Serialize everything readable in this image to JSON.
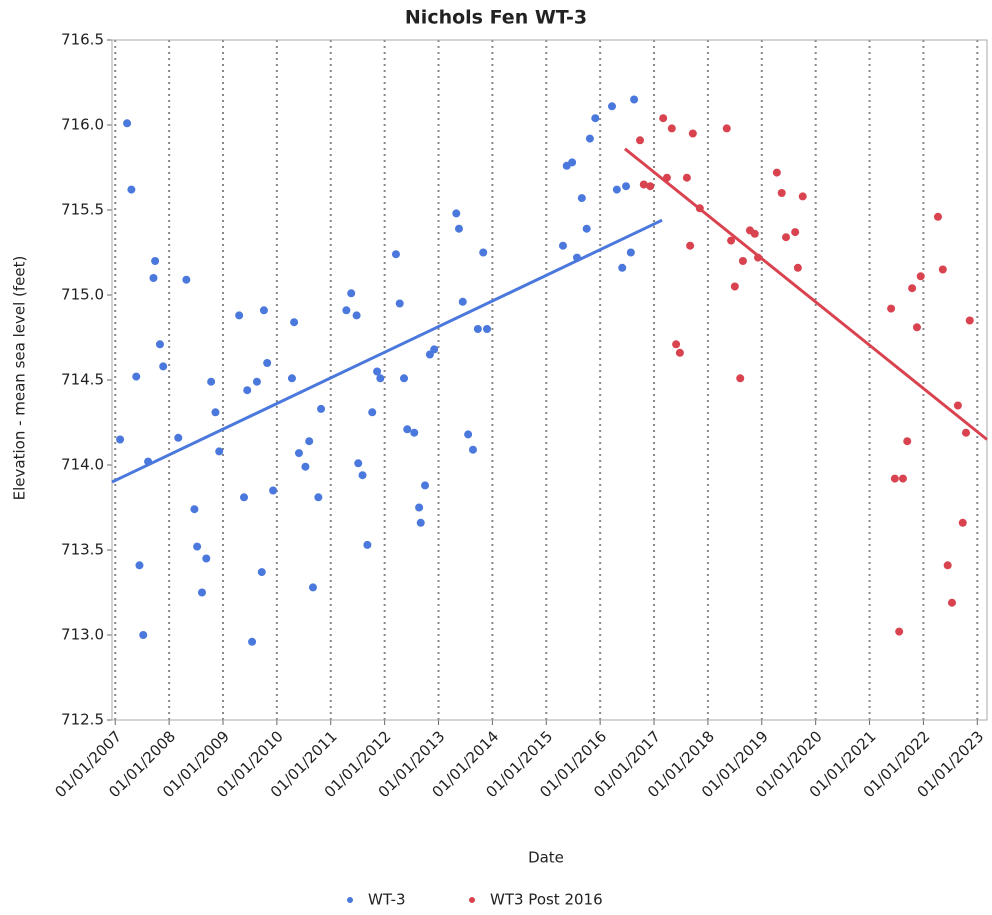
{
  "chart_data": {
    "type": "scatter",
    "title": "Nichols Fen WT-3",
    "x_label": "Date",
    "y_label": "Elevation - mean sea level (feet)",
    "xlim": [
      2006.94,
      2023.18
    ],
    "ylim": [
      712.5,
      716.5
    ],
    "xticks": [
      {
        "value": 2007,
        "label": "01/01/2007"
      },
      {
        "value": 2008,
        "label": "01/01/2008"
      },
      {
        "value": 2009,
        "label": "01/01/2009"
      },
      {
        "value": 2010,
        "label": "01/01/2010"
      },
      {
        "value": 2011,
        "label": "01/01/2011"
      },
      {
        "value": 2012,
        "label": "01/01/2012"
      },
      {
        "value": 2013,
        "label": "01/01/2013"
      },
      {
        "value": 2014,
        "label": "01/01/2014"
      },
      {
        "value": 2015,
        "label": "01/01/2015"
      },
      {
        "value": 2016,
        "label": "01/01/2016"
      },
      {
        "value": 2017,
        "label": "01/01/2017"
      },
      {
        "value": 2018,
        "label": "01/01/2018"
      },
      {
        "value": 2019,
        "label": "01/01/2019"
      },
      {
        "value": 2020,
        "label": "01/01/2020"
      },
      {
        "value": 2021,
        "label": "01/01/2021"
      },
      {
        "value": 2022,
        "label": "01/01/2022"
      },
      {
        "value": 2023,
        "label": "01/01/2023"
      }
    ],
    "yticks": [
      {
        "value": 712.5,
        "label": "712.5"
      },
      {
        "value": 713,
        "label": "713.0"
      },
      {
        "value": 713.5,
        "label": "713.5"
      },
      {
        "value": 714,
        "label": "714.0"
      },
      {
        "value": 714.5,
        "label": "714.5"
      },
      {
        "value": 715,
        "label": "715.0"
      },
      {
        "value": 715.5,
        "label": "715.5"
      },
      {
        "value": 716,
        "label": "716.0"
      },
      {
        "value": 716.5,
        "label": "716.5"
      }
    ],
    "x_grid": true,
    "series": [
      {
        "name": "WT-3",
        "color": "#4a78dc",
        "x": [
          2007.09,
          2007.22,
          2007.3,
          2007.39,
          2007.45,
          2007.52,
          2007.61,
          2007.71,
          2007.74,
          2007.83,
          2007.89,
          2008.17,
          2008.32,
          2008.47,
          2008.52,
          2008.61,
          2008.69,
          2008.78,
          2008.86,
          2008.93,
          2009.3,
          2009.39,
          2009.45,
          2009.54,
          2009.63,
          2009.72,
          2009.76,
          2009.82,
          2009.93,
          2010.28,
          2010.32,
          2010.41,
          2010.53,
          2010.6,
          2010.67,
          2010.77,
          2010.82,
          2011.29,
          2011.38,
          2011.48,
          2011.51,
          2011.59,
          2011.68,
          2011.77,
          2011.86,
          2011.92,
          2012.21,
          2012.28,
          2012.36,
          2012.42,
          2012.55,
          2012.64,
          2012.67,
          2012.75,
          2012.84,
          2012.92,
          2013.33,
          2013.38,
          2013.45,
          2013.55,
          2013.64,
          2013.73,
          2013.83,
          2013.9,
          2015.31,
          2015.38,
          2015.48,
          2015.57,
          2015.66,
          2015.75,
          2015.81,
          2015.91,
          2016.22,
          2016.31,
          2016.41,
          2016.48,
          2016.57,
          2016.63
        ],
        "values": [
          714.15,
          716.01,
          715.62,
          714.52,
          713.41,
          713.0,
          714.02,
          715.1,
          715.2,
          714.71,
          714.58,
          714.16,
          715.09,
          713.74,
          713.52,
          713.25,
          713.45,
          714.49,
          714.31,
          714.08,
          714.88,
          713.81,
          714.44,
          712.96,
          714.49,
          713.37,
          714.91,
          714.6,
          713.85,
          714.51,
          714.84,
          714.07,
          713.99,
          714.14,
          713.28,
          713.81,
          714.33,
          714.91,
          715.01,
          714.88,
          714.01,
          713.94,
          713.53,
          714.31,
          714.55,
          714.51,
          715.24,
          714.95,
          714.51,
          714.21,
          714.19,
          713.75,
          713.66,
          713.88,
          714.65,
          714.68,
          715.48,
          715.39,
          714.96,
          714.18,
          714.09,
          714.8,
          715.25,
          714.8,
          715.29,
          715.76,
          715.78,
          715.22,
          715.57,
          715.39,
          715.92,
          716.04,
          716.11,
          715.62,
          715.16,
          715.64,
          715.25,
          716.15
        ],
        "fit": {
          "x": [
            2006.94,
            2017.15
          ],
          "y": [
            713.9,
            715.44
          ]
        }
      },
      {
        "name": "WT3 Post 2016",
        "color": "#d9434f",
        "x": [
          2016.74,
          2016.81,
          2016.93,
          2017.17,
          2017.24,
          2017.33,
          2017.41,
          2017.48,
          2017.61,
          2017.67,
          2017.72,
          2017.85,
          2018.35,
          2018.43,
          2018.5,
          2018.6,
          2018.65,
          2018.78,
          2018.87,
          2018.93,
          2019.28,
          2019.37,
          2019.45,
          2019.62,
          2019.67,
          2019.76,
          2021.4,
          2021.47,
          2021.55,
          2021.62,
          2021.7,
          2021.79,
          2021.88,
          2021.95,
          2022.27,
          2022.36,
          2022.45,
          2022.53,
          2022.64,
          2022.73,
          2022.79,
          2022.86
        ],
        "values": [
          715.91,
          715.65,
          715.64,
          716.04,
          715.69,
          715.98,
          714.71,
          714.66,
          715.69,
          715.29,
          715.95,
          715.51,
          715.98,
          715.32,
          715.05,
          714.51,
          715.2,
          715.38,
          715.36,
          715.22,
          715.72,
          715.6,
          715.34,
          715.37,
          715.16,
          715.58,
          714.92,
          713.92,
          713.02,
          713.92,
          714.14,
          715.04,
          714.81,
          715.11,
          715.46,
          715.15,
          713.41,
          713.19,
          714.35,
          713.66,
          714.19,
          714.85
        ],
        "fit": {
          "x": [
            2016.46,
            2023.18
          ],
          "y": [
            715.86,
            714.15
          ]
        }
      }
    ]
  }
}
